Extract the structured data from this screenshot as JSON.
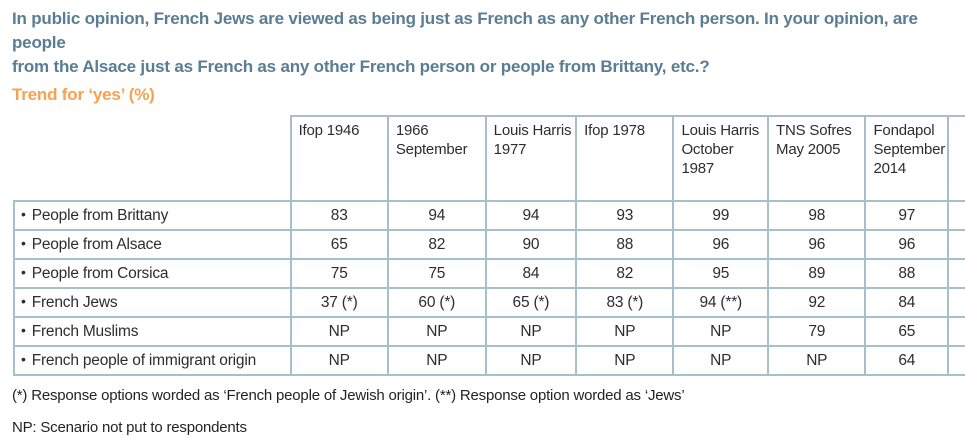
{
  "title": {
    "line1": "In public opinion, French Jews are viewed as being just as French as any other French person. In your opinion, are people",
    "line2": "from the Alsace just as French as any other French person or people from Brittany, etc.?"
  },
  "subtitle": "Trend for ‘yes’ (%)",
  "table": {
    "bullet": "•",
    "columns": [
      "Ifop 1946",
      "1966 September",
      "Louis Harris 1977",
      "Ifop 1978",
      "Louis Harris October 1987",
      "TNS  Sofres May 2005",
      "Fondapol September 2014"
    ],
    "rows": [
      {
        "label": "People from Brittany",
        "values": [
          "83",
          "94",
          "94",
          "93",
          "99",
          "98",
          "97"
        ]
      },
      {
        "label": "People from Alsace",
        "values": [
          "65",
          "82",
          "90",
          "88",
          "96",
          "96",
          "96"
        ]
      },
      {
        "label": "People from Corsica",
        "values": [
          "75",
          "75",
          "84",
          "82",
          "95",
          "89",
          "88"
        ]
      },
      {
        "label": "French Jews",
        "values": [
          "37 (*)",
          "60 (*)",
          "65 (*)",
          "83 (*)",
          "94 (**)",
          "92",
          "84"
        ]
      },
      {
        "label": "French Muslims",
        "values": [
          "NP",
          "NP",
          "NP",
          "NP",
          "NP",
          "79",
          "65"
        ]
      },
      {
        "label": "French people of immigrant origin",
        "values": [
          "NP",
          "NP",
          "NP",
          "NP",
          "NP",
          "NP",
          "64"
        ]
      }
    ]
  },
  "footnotes": {
    "note1": "(*) Response options worded as ‘French people of Jewish origin’. (**) Response option worded as ‘Jews’",
    "note2": "NP: Scenario not put to respondents"
  },
  "colors": {
    "title_text": "#5a7d93",
    "subtitle_text": "#f9a14e",
    "table_border": "#a7becb",
    "body_text": "#2d2d2d"
  },
  "chart_data": {
    "type": "table",
    "title": "Trend for ‘yes’ (%)",
    "question": "In public opinion, French Jews are viewed as being just as French as any other French person. In your opinion, are people from the Alsace just as French as any other French person or people from Brittany, etc.?",
    "categories": [
      "Ifop 1946",
      "1966 September",
      "Louis Harris 1977",
      "Ifop 1978",
      "Louis Harris October 1987",
      "TNS Sofres May 2005",
      "Fondapol September 2014"
    ],
    "series": [
      {
        "name": "People from Brittany",
        "values": [
          83,
          94,
          94,
          93,
          99,
          98,
          97
        ]
      },
      {
        "name": "People from Alsace",
        "values": [
          65,
          82,
          90,
          88,
          96,
          96,
          96
        ]
      },
      {
        "name": "People from Corsica",
        "values": [
          75,
          75,
          84,
          82,
          95,
          89,
          88
        ]
      },
      {
        "name": "French Jews",
        "values": [
          37,
          60,
          65,
          83,
          94,
          92,
          84
        ],
        "cell_notes": [
          "(*)",
          "(*)",
          "(*)",
          "(*)",
          "(**)",
          null,
          null
        ]
      },
      {
        "name": "French Muslims",
        "values": [
          null,
          null,
          null,
          null,
          null,
          79,
          65
        ]
      },
      {
        "name": "French people of immigrant origin",
        "values": [
          null,
          null,
          null,
          null,
          null,
          null,
          64
        ]
      }
    ],
    "null_marker": "NP",
    "value_range": [
      0,
      100
    ],
    "footnotes": [
      "(*) Response options worded as ‘French people of Jewish origin’. (**) Response option worded as ‘Jews’",
      "NP: Scenario not put to respondents"
    ]
  }
}
